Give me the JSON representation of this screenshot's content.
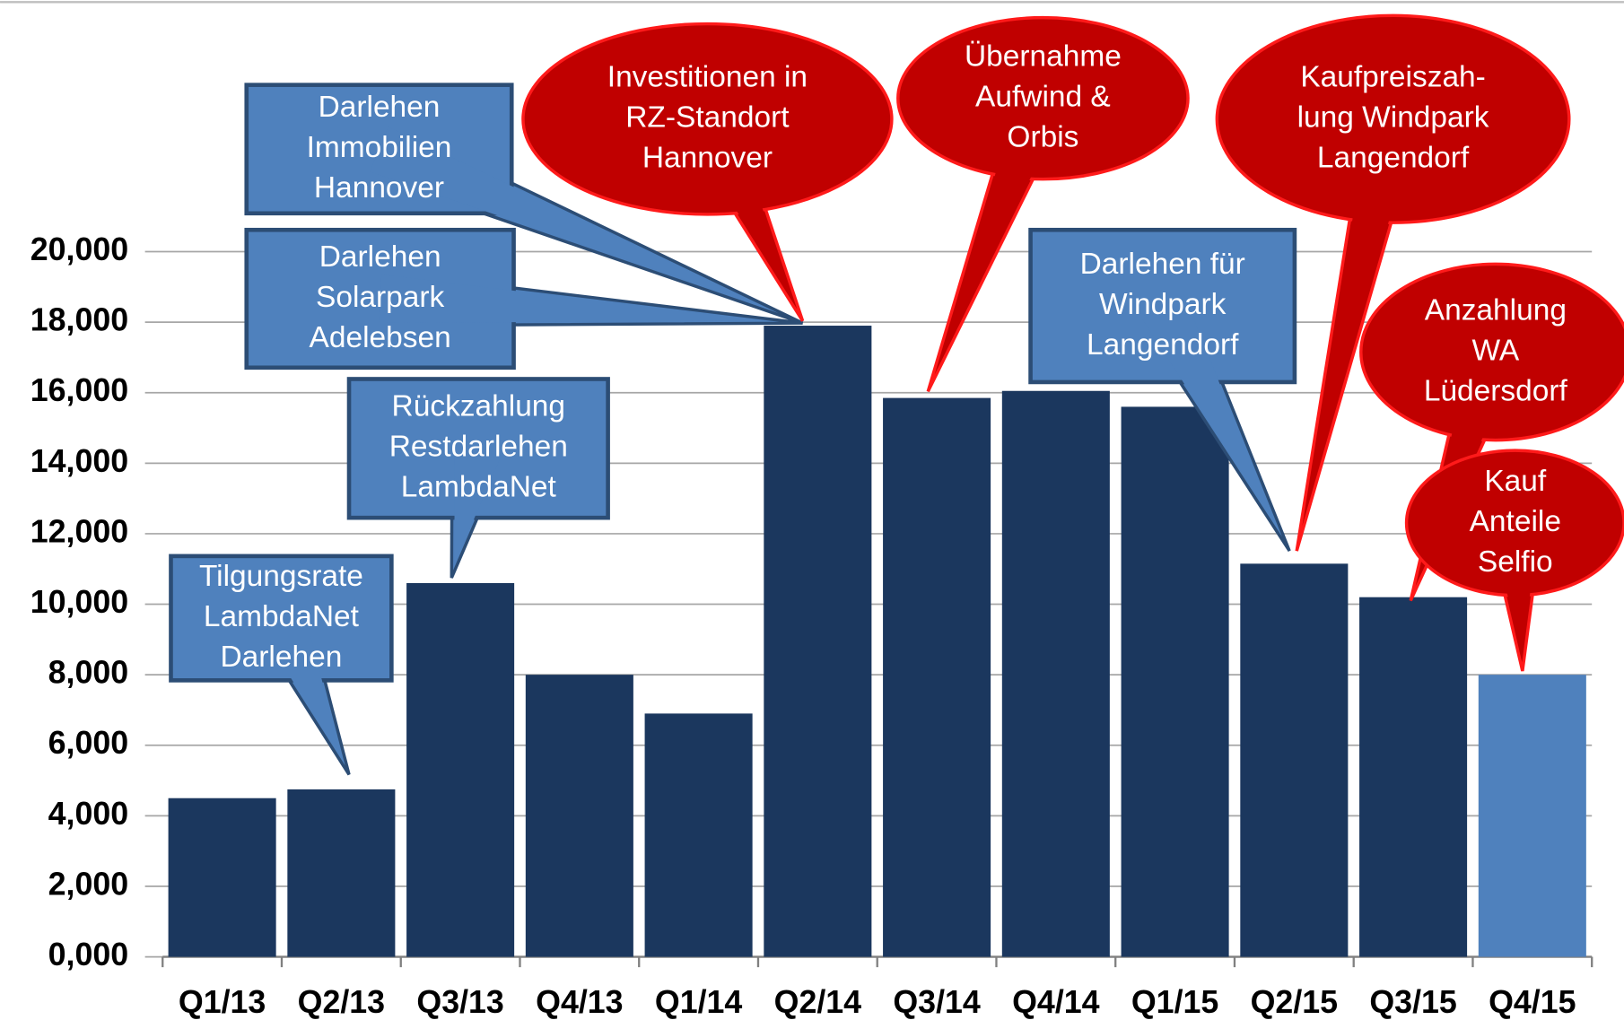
{
  "chart_data": {
    "type": "bar",
    "categories": [
      "Q1/13",
      "Q2/13",
      "Q3/13",
      "Q4/13",
      "Q1/14",
      "Q2/14",
      "Q3/14",
      "Q4/14",
      "Q1/15",
      "Q2/15",
      "Q3/15",
      "Q4/15"
    ],
    "values": [
      4500,
      4750,
      10600,
      8000,
      6900,
      17900,
      15850,
      16050,
      15600,
      11150,
      10200,
      8000
    ],
    "colors": [
      "#1b375e",
      "#1b375e",
      "#1b375e",
      "#1b375e",
      "#1b375e",
      "#1b375e",
      "#1b375e",
      "#1b375e",
      "#1b375e",
      "#1b375e",
      "#1b375e",
      "#4f81bd"
    ],
    "ylim": [
      0,
      20000
    ],
    "yticks": [
      {
        "value": 0,
        "label": "0,000"
      },
      {
        "value": 2000,
        "label": "2,000"
      },
      {
        "value": 4000,
        "label": "4,000"
      },
      {
        "value": 6000,
        "label": "6,000"
      },
      {
        "value": 8000,
        "label": "8,000"
      },
      {
        "value": 10000,
        "label": "10,000"
      },
      {
        "value": 12000,
        "label": "12,000"
      },
      {
        "value": 14000,
        "label": "14,000"
      },
      {
        "value": 16000,
        "label": "16,000"
      },
      {
        "value": 18000,
        "label": "18,000"
      },
      {
        "value": 20000,
        "label": "20,000"
      }
    ],
    "grid": true,
    "annotations": [
      {
        "lines": [
          "Tilgungsrate",
          "LambdaNet",
          "Darlehen"
        ],
        "shape": "box"
      },
      {
        "lines": [
          "Rückzahlung",
          "Restdarlehen",
          "LambdaNet"
        ],
        "shape": "box"
      },
      {
        "lines": [
          "Darlehen",
          "Solarpark",
          "Adelebsen"
        ],
        "shape": "box"
      },
      {
        "lines": [
          "Darlehen",
          "Immobilien",
          "Hannover"
        ],
        "shape": "box"
      },
      {
        "lines": [
          "Investitionen in",
          "RZ-Standort",
          "Hannover"
        ],
        "shape": "bubble"
      },
      {
        "lines": [
          "Übernahme",
          "Aufwind &",
          "Orbis"
        ],
        "shape": "bubble"
      },
      {
        "lines": [
          "Darlehen für",
          "Windpark",
          "Langendorf"
        ],
        "shape": "box"
      },
      {
        "lines": [
          "Kaufpreiszah-",
          "lung Windpark",
          "Langendorf"
        ],
        "shape": "bubble"
      },
      {
        "lines": [
          "Anzahlung",
          "WA",
          "Lüdersdorf"
        ],
        "shape": "bubble"
      },
      {
        "lines": [
          "Kauf",
          "Anteile",
          "Selfio"
        ],
        "shape": "bubble"
      }
    ]
  }
}
